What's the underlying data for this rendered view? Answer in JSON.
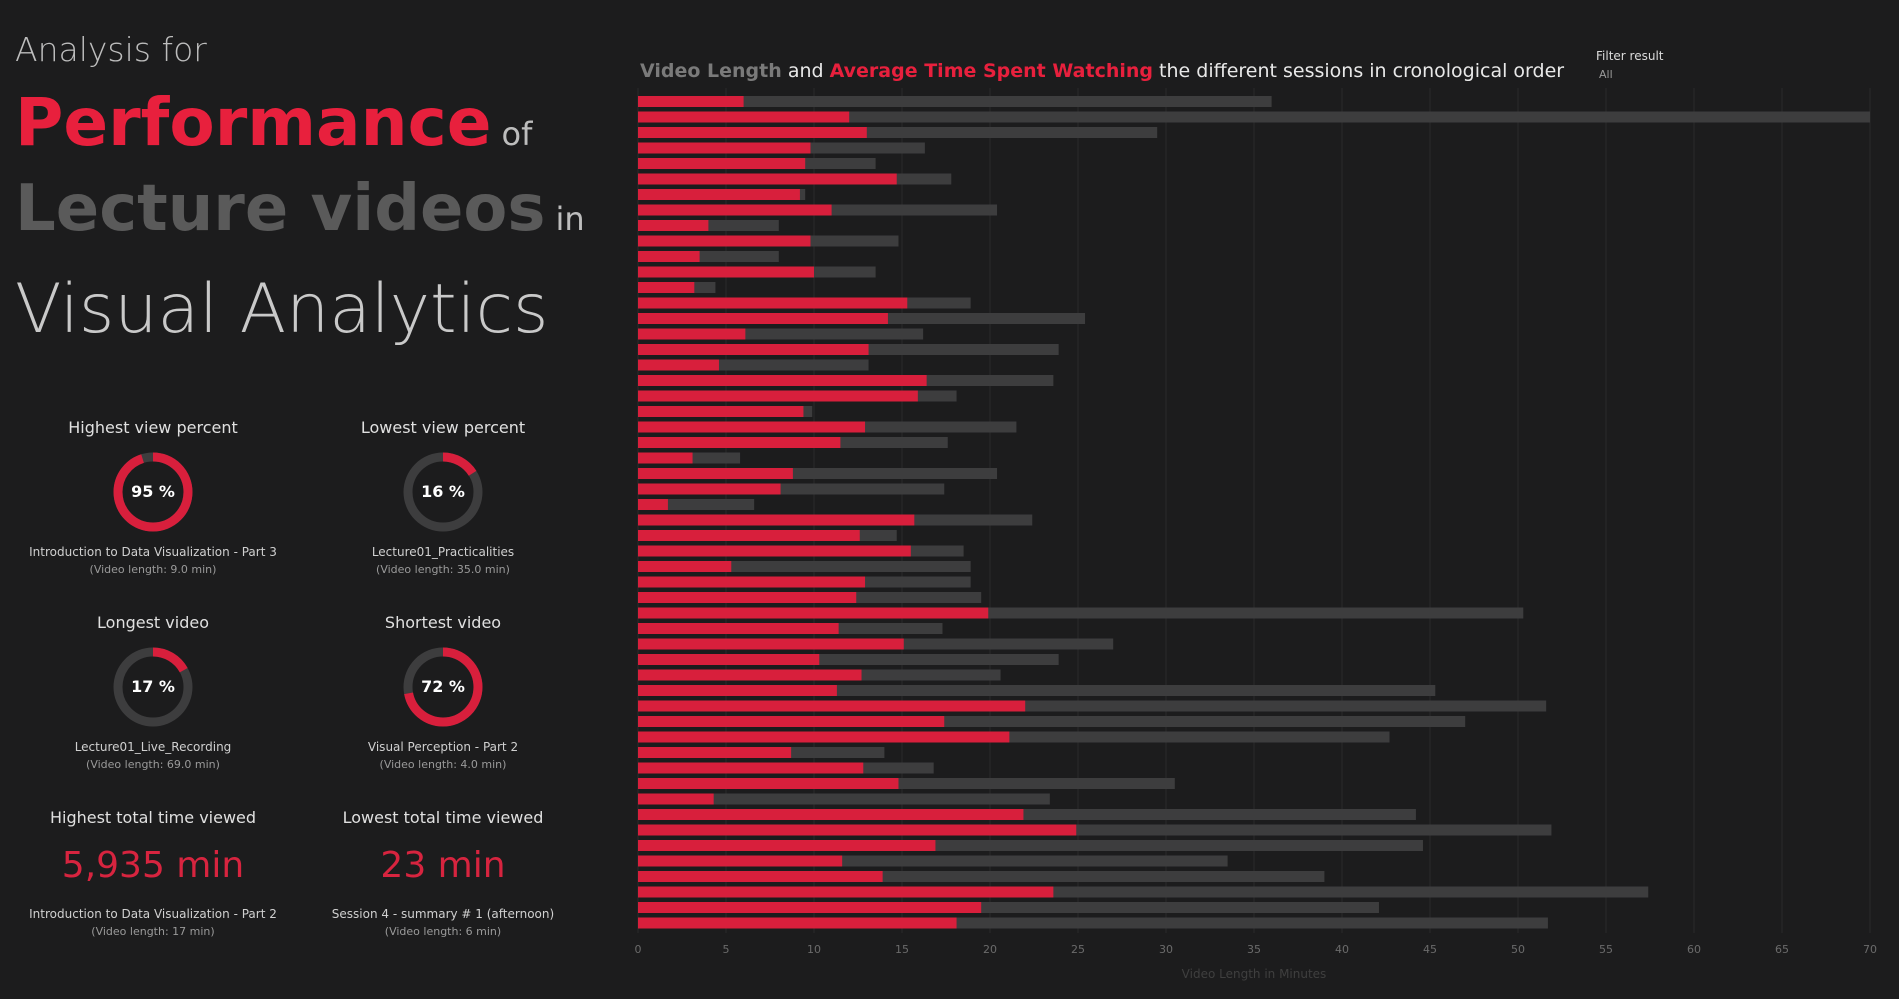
{
  "header": {
    "line1": "Analysis for",
    "performance": "Performance",
    "of": "of",
    "lecture_videos": "Lecture videos",
    "in": "in",
    "visual_analytics": "Visual Analytics"
  },
  "colors": {
    "accent_red": "#d81f3c",
    "bar_grey": "#3d3d3e",
    "background": "#1c1c1d"
  },
  "kpis": {
    "highest_view": {
      "heading": "Highest view percent",
      "percent": 95,
      "percent_label": "95 %",
      "name": "Introduction to Data Visualization - Part 3",
      "length": "(Video length: 9.0  min)"
    },
    "lowest_view": {
      "heading": "Lowest view percent",
      "percent": 16,
      "percent_label": "16 %",
      "name": "Lecture01_Practicalities",
      "length": "(Video length: 35.0  min)"
    },
    "longest": {
      "heading": "Longest video",
      "percent": 17,
      "percent_label": "17 %",
      "name": "Lecture01_Live_Recording",
      "length": "(Video length: 69.0  min)"
    },
    "shortest": {
      "heading": "Shortest video",
      "percent": 72,
      "percent_label": "72 %",
      "name": "Visual Perception - Part 2",
      "length": "(Video length: 4.0  min)"
    },
    "highest_total": {
      "heading": "Highest total time viewed",
      "value": "5,935 min",
      "name": "Introduction to Data Visualization - Part 2",
      "length": "(Video length: 17  min)"
    },
    "lowest_total": {
      "heading": "Lowest total time viewed",
      "value": "23 min",
      "name": "Session 4 - summary # 1 (afternoon)",
      "length": "(Video length: 6  min)"
    }
  },
  "chart_title": {
    "part1": "Video Length",
    "part2": "and",
    "part3": "Average Time Spent Watching",
    "part4": "the different sessions in cronological order"
  },
  "filter": {
    "label": "Filter result",
    "value": "All"
  },
  "chart_data": {
    "type": "bar",
    "orientation": "horizontal",
    "stacked_overlay": true,
    "xlabel": "Video Length in Minutes",
    "xlim": [
      0,
      70
    ],
    "xticks": [
      0,
      5,
      10,
      15,
      20,
      25,
      30,
      35,
      40,
      45,
      50,
      55,
      60,
      65,
      70
    ],
    "grid": true,
    "series": [
      {
        "name": "Video Length",
        "values": [
          36.0,
          70.0,
          29.5,
          16.3,
          13.5,
          17.8,
          9.5,
          20.4,
          8.0,
          14.8,
          8.0,
          13.5,
          4.4,
          18.9,
          25.4,
          16.2,
          23.9,
          13.1,
          23.6,
          18.1,
          9.9,
          21.5,
          17.6,
          5.8,
          20.4,
          17.4,
          6.6,
          22.4,
          14.7,
          18.5,
          18.9,
          18.9,
          19.5,
          50.3,
          17.3,
          27.0,
          23.9,
          20.6,
          45.3,
          51.6,
          47.0,
          42.7,
          14.0,
          16.8,
          30.5,
          23.4,
          44.2,
          51.9,
          44.6,
          33.5,
          39.0,
          57.4,
          42.1,
          51.7
        ]
      },
      {
        "name": "Average Time Spent Watching",
        "values": [
          6.0,
          12.0,
          13.0,
          9.8,
          9.5,
          14.7,
          9.2,
          11.0,
          4.0,
          9.8,
          3.5,
          10.0,
          3.2,
          15.3,
          14.2,
          6.1,
          13.1,
          4.6,
          16.4,
          15.9,
          9.4,
          12.9,
          11.5,
          3.1,
          8.8,
          8.1,
          1.7,
          15.7,
          12.6,
          15.5,
          5.3,
          12.9,
          12.4,
          19.9,
          11.4,
          15.1,
          10.3,
          12.7,
          11.3,
          22.0,
          17.4,
          21.1,
          8.7,
          12.8,
          14.8,
          4.3,
          21.9,
          24.9,
          16.9,
          11.6,
          13.9,
          23.6,
          19.5,
          18.1
        ]
      }
    ]
  }
}
